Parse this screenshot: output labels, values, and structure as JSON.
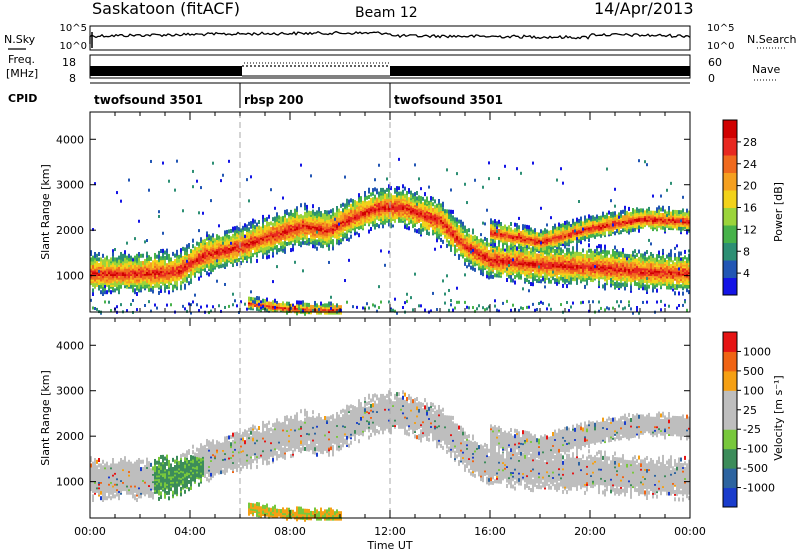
{
  "header": {
    "station": "Saskatoon (fitACF)",
    "beam": "Beam 12",
    "date": "14/Apr/2013"
  },
  "strip_labels": {
    "nsky": "N.Sky",
    "nsearch": "N.Search",
    "freq_line1": "Freq.",
    "freq_line2": "[MHz]",
    "nave": "Nave",
    "cpid": "CPID"
  },
  "noise_axis": {
    "top": "10^5",
    "bottom": "10^0"
  },
  "freq_axis": {
    "ticks": [
      "18",
      "8"
    ]
  },
  "nave_axis": {
    "ticks": [
      "60",
      "0"
    ]
  },
  "cpid_segments": [
    {
      "label": "twofsound 3501",
      "start_h": 0,
      "end_h": 6
    },
    {
      "label": "rbsp 200",
      "start_h": 6,
      "end_h": 12
    },
    {
      "label": "twofsound 3501",
      "start_h": 12,
      "end_h": 24
    }
  ],
  "chart_data": [
    {
      "type": "heatmap",
      "name": "power",
      "ylabel": "Slant Range [km]",
      "xlabel": "Time UT",
      "xlim": [
        0,
        24
      ],
      "ylim": [
        200,
        4600
      ],
      "yticks": [
        1000,
        2000,
        3000,
        4000
      ],
      "colorbar": {
        "label": "Power [dB]",
        "ticks": [
          "4",
          "8",
          "12",
          "16",
          "20",
          "24",
          "28"
        ],
        "colors": [
          "#1414e6",
          "#2256b4",
          "#2d8f74",
          "#47b24a",
          "#9bd43b",
          "#f2d21a",
          "#f5a020",
          "#f06a1e",
          "#e82820",
          "#d00000"
        ]
      },
      "echo_bands": [
        {
          "desc": "main band",
          "points": [
            [
              0,
              1100
            ],
            [
              2,
              1100
            ],
            [
              3.5,
              1150
            ],
            [
              4.5,
              1500
            ],
            [
              6,
              1700
            ],
            [
              7,
              1900
            ],
            [
              8.5,
              2150
            ],
            [
              9.5,
              2050
            ],
            [
              10.5,
              2350
            ],
            [
              11.5,
              2550
            ],
            [
              12.5,
              2550
            ],
            [
              14,
              2250
            ],
            [
              15,
              1700
            ],
            [
              16,
              1400
            ],
            [
              18,
              1300
            ],
            [
              20,
              1250
            ],
            [
              22,
              1150
            ],
            [
              24,
              1100
            ]
          ]
        },
        {
          "desc": "upper band",
          "points": [
            [
              16,
              2000
            ],
            [
              18,
              1800
            ],
            [
              20,
              2100
            ],
            [
              22,
              2300
            ],
            [
              24,
              2250
            ]
          ]
        },
        {
          "desc": "near-range echoes",
          "points": [
            [
              6.3,
              450
            ],
            [
              7.5,
              350
            ],
            [
              9,
              300
            ],
            [
              10,
              300
            ]
          ]
        }
      ]
    },
    {
      "type": "heatmap",
      "name": "velocity",
      "ylabel": "Slant Range [km]",
      "xlabel": "Time UT",
      "xlim": [
        0,
        24
      ],
      "ylim": [
        200,
        4600
      ],
      "yticks": [
        1000,
        2000,
        3000,
        4000
      ],
      "xticks": [
        "00:00",
        "04:00",
        "08:00",
        "12:00",
        "16:00",
        "20:00",
        "00:00"
      ],
      "colorbar": {
        "label": "Velocity [m s⁻¹]",
        "ticks": [
          "1000",
          "500",
          "100",
          "25",
          "-25",
          "-100",
          "-500",
          "-1000"
        ],
        "colors": [
          "#1a3ccc",
          "#2d64a0",
          "#3c8c5a",
          "#78c83c",
          "#bebebe",
          "#bebebe",
          "#f5a014",
          "#f06414",
          "#e61414"
        ]
      }
    }
  ]
}
